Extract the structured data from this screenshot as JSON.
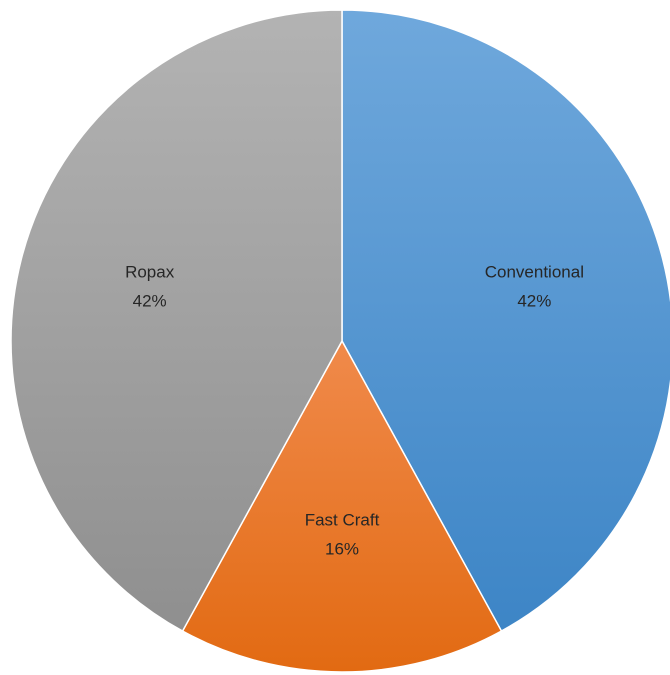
{
  "chart_data": {
    "type": "pie",
    "title": "",
    "legend": "none",
    "start_angle_deg": 0,
    "direction": "clockwise",
    "slices": [
      {
        "label": "Conventional",
        "value": 42,
        "percent_label": "42%",
        "color_top": "#6fa8dc",
        "color_bottom": "#3d85c6"
      },
      {
        "label": "Fast Craft",
        "value": 16,
        "percent_label": "16%",
        "color_top": "#f08a4b",
        "color_bottom": "#e26a12"
      },
      {
        "label": "Ropax",
        "value": 42,
        "percent_label": "42%",
        "color_top": "#b3b3b3",
        "color_bottom": "#8f8f8f"
      }
    ]
  }
}
